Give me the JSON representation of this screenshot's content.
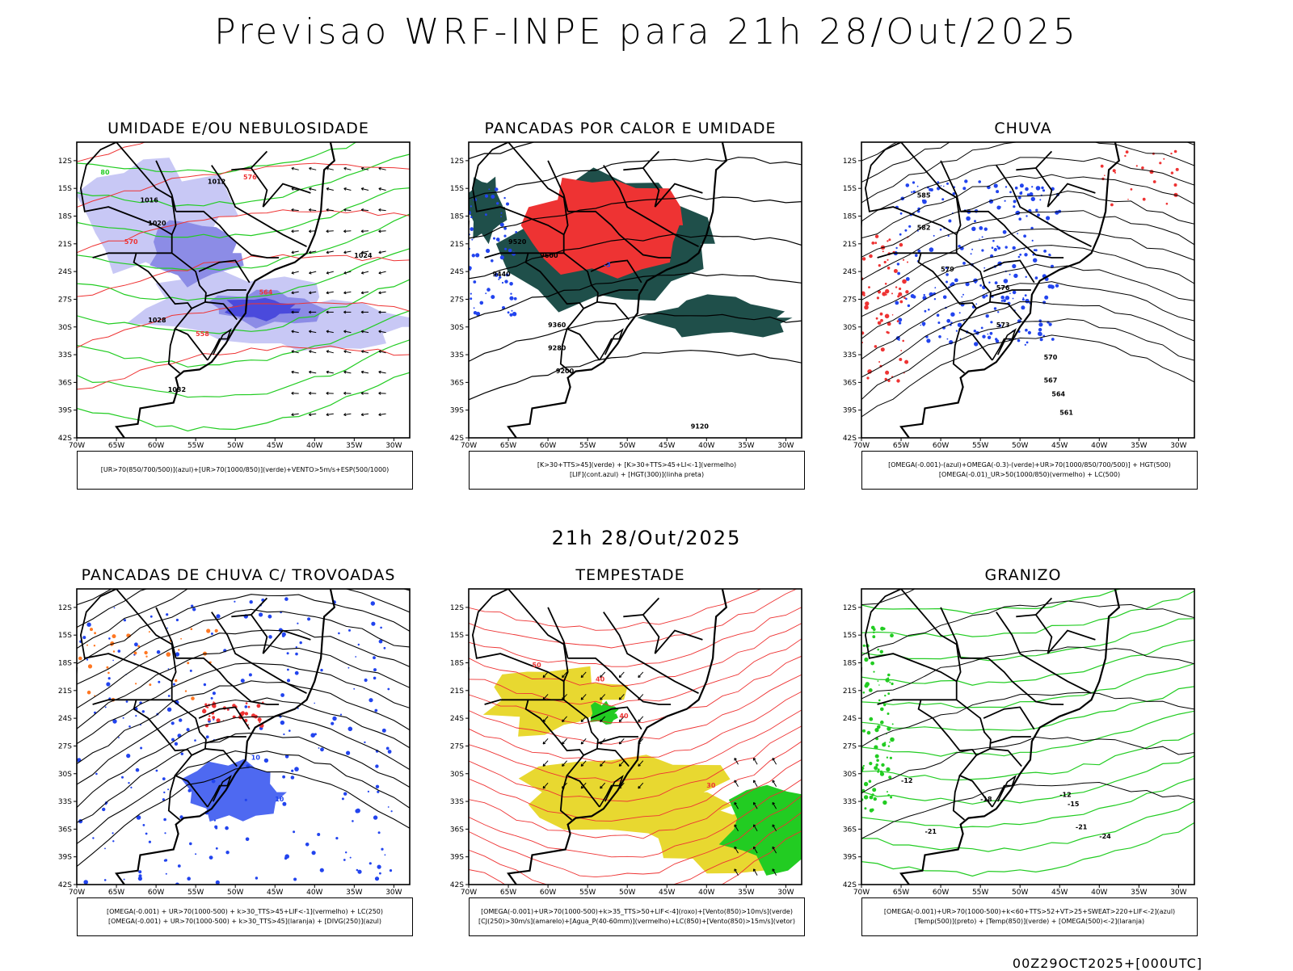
{
  "header": {
    "title": "Previsao WRF-INPE  para 21h 28/Out/2025",
    "mid_date": "21h 28/Out/2025",
    "run_stamp": "00Z29OCT2025+[000UTC]"
  },
  "axes": {
    "lon_ticks": [
      "70W",
      "65W",
      "60W",
      "55W",
      "50W",
      "45W",
      "40W",
      "35W",
      "30W"
    ],
    "lat_ticks": [
      "12S",
      "15S",
      "18S",
      "21S",
      "24S",
      "27S",
      "30S",
      "33S",
      "36S",
      "39S",
      "42S"
    ],
    "lon_values": [
      -70,
      -65,
      -60,
      -55,
      -50,
      -45,
      -40,
      -35,
      -30
    ],
    "lat_values": [
      -12,
      -15,
      -18,
      -21,
      -24,
      -27,
      -30,
      -33,
      -36,
      -39,
      -42
    ]
  },
  "colors": {
    "humidity_light": "#c8c8f5",
    "humidity_mid": "#8c8ce6",
    "humidity_dark": "#4a4adc",
    "green": "#22cc22",
    "red": "#ee3333",
    "blue": "#2244ee",
    "dark_teal": "#1f4f4a",
    "yellow": "#e8d830",
    "orange": "#ff7722",
    "black": "#000000"
  },
  "panels": [
    {
      "id": "umidade",
      "title": "UMIDADE E/OU NEBULOSIDADE",
      "legend": [
        "[UR>70(850/700/500)](azul)+[UR>70(1000/850)](verde)+VENTO>5m/s+ESP(500/1000)"
      ],
      "labels": [
        "1012",
        "1016",
        "1020",
        "1024",
        "1028",
        "1032",
        "576",
        "570",
        "564",
        "558",
        "80"
      ]
    },
    {
      "id": "pancadas_calor",
      "title": "PANCADAS POR CALOR E UMIDADE",
      "legend": [
        "[K>30+TTS>45](verde) + [K>30+TTS>45+LI<-1](vermelho)",
        "[LIF](cont.azul) + [HGT(300)](linha preta)"
      ],
      "labels": [
        "9520",
        "9600",
        "9440",
        "9360",
        "9280",
        "9200",
        "9120",
        "-3"
      ]
    },
    {
      "id": "chuva",
      "title": "CHUVA",
      "legend": [
        "[OMEGA(-0.001)-(azul)+OMEGA(-0.3)-(verde)+UR>70(1000/850/700/500)] + HGT(500)",
        "[OMEGA(-0.01)_UR>50(1000/850)(vermelho) + LC(500)"
      ],
      "labels": [
        "585",
        "582",
        "579",
        "576",
        "573",
        "570",
        "567",
        "564",
        "561"
      ]
    },
    {
      "id": "trovoadas",
      "title": "PANCADAS DE CHUVA C/ TROVOADAS",
      "legend": [
        "[OMEGA(-0.001) + UR>70(1000-500) + k>30_TTS>45+LIF<-1](vermelho) + LC(250)",
        "[OMEGA(-0.001) + UR>70(1000-500) + k>30_TTS>45](laranja) + [DIVG(250)](azul)"
      ],
      "labels": [
        "10"
      ]
    },
    {
      "id": "tempestade",
      "title": "TEMPESTADE",
      "legend": [
        "[OMEGA(-0.001)+UR>70(1000-500)+k>35_TTS>50+LIF<-4](roxo)+[Vento(850)>10m/s](verde)",
        "[CJ(250)>30m/s](amarelo)+[Agua_P(40-60mm)](vermelho)+LC(850)+[Vento(850)>15m/s](vetor)"
      ],
      "labels": [
        "40",
        "50",
        "30"
      ]
    },
    {
      "id": "granizo",
      "title": "GRANIZO",
      "legend": [
        "[OMEGA(-0.001)+UR>70(1000-500)+k<60+TTS>52+VT>25+SWEAT>220+LIF<-2](azul)",
        "[Temp(500)](preto) + [Temp(850)](verde) + [OMEGA(500)<-2](laranja)"
      ],
      "labels": [
        "-12",
        "-15",
        "-18",
        "-21",
        "-24"
      ]
    }
  ]
}
